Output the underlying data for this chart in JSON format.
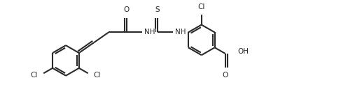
{
  "bg_color": "#ffffff",
  "line_color": "#2a2a2a",
  "line_width": 1.5,
  "font_size": 7.5,
  "ring_r": 0.44,
  "figsize": [
    5.17,
    1.58
  ],
  "dpi": 100,
  "xlim": [
    0,
    10.34
  ],
  "ylim": [
    0,
    3.16
  ]
}
